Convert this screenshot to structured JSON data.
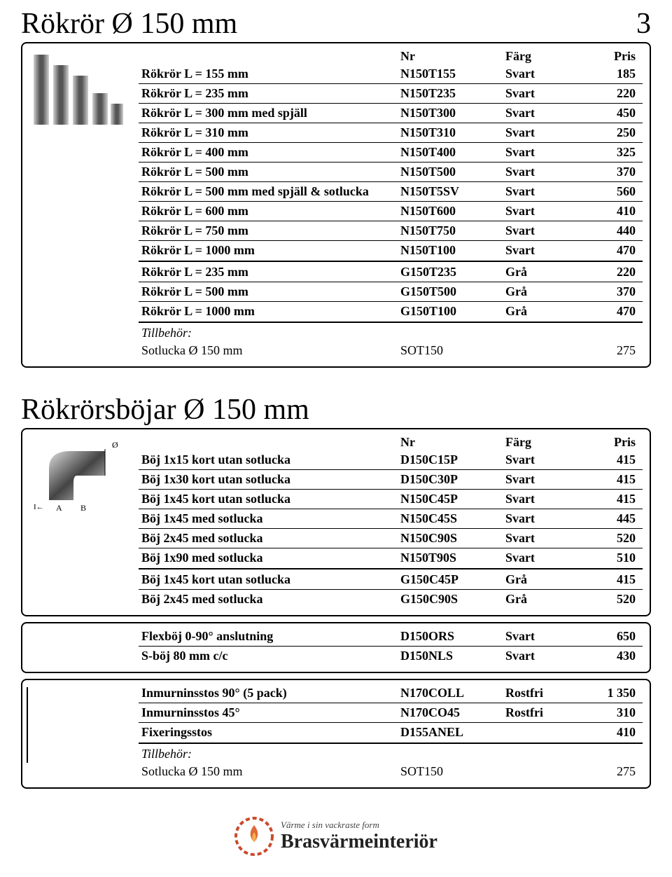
{
  "page_number": "3",
  "headers": {
    "nr": "Nr",
    "farg": "Färg",
    "pris": "Pris"
  },
  "colors": {
    "svart": "Svart",
    "gra": "Grå",
    "rostfri": "Rostfri"
  },
  "section1": {
    "title": "Rökrör Ø 150 mm",
    "rows_svart": [
      {
        "desc": "Rökrör L = 155 mm",
        "nr": "N150T155",
        "farg": "Svart",
        "pris": "185"
      },
      {
        "desc": "Rökrör L = 235 mm",
        "nr": "N150T235",
        "farg": "Svart",
        "pris": "220"
      },
      {
        "desc": "Rökrör L = 300 mm med spjäll",
        "nr": "N150T300",
        "farg": "Svart",
        "pris": "450"
      },
      {
        "desc": "Rökrör L = 310 mm",
        "nr": "N150T310",
        "farg": "Svart",
        "pris": "250"
      },
      {
        "desc": "Rökrör L = 400 mm",
        "nr": "N150T400",
        "farg": "Svart",
        "pris": "325"
      },
      {
        "desc": "Rökrör L = 500 mm",
        "nr": "N150T500",
        "farg": "Svart",
        "pris": "370"
      },
      {
        "desc": "Rökrör L = 500 mm med spjäll & sotlucka",
        "nr": "N150T5SV",
        "farg": "Svart",
        "pris": "560"
      },
      {
        "desc": "Rökrör L = 600 mm",
        "nr": "N150T600",
        "farg": "Svart",
        "pris": "410"
      },
      {
        "desc": "Rökrör L = 750 mm",
        "nr": "N150T750",
        "farg": "Svart",
        "pris": "440"
      },
      {
        "desc": "Rökrör L = 1000 mm",
        "nr": "N150T100",
        "farg": "Svart",
        "pris": "470"
      }
    ],
    "rows_gra": [
      {
        "desc": "Rökrör L = 235 mm",
        "nr": "G150T235",
        "farg": "Grå",
        "pris": "220"
      },
      {
        "desc": "Rökrör L = 500 mm",
        "nr": "G150T500",
        "farg": "Grå",
        "pris": "370"
      },
      {
        "desc": "Rökrör L = 1000 mm",
        "nr": "G150T100",
        "farg": "Grå",
        "pris": "470"
      }
    ],
    "tillbehor_label": "Tillbehör:",
    "tillbehor_row": {
      "desc": "Sotlucka Ø 150 mm",
      "nr": "SOT150",
      "farg": "",
      "pris": "275"
    }
  },
  "section2": {
    "title": "Rökrörsböjar Ø 150 mm",
    "rows_svart": [
      {
        "desc": "Böj 1x15 kort utan sotlucka",
        "nr": "D150C15P",
        "farg": "Svart",
        "pris": "415"
      },
      {
        "desc": "Böj 1x30 kort utan sotlucka",
        "nr": "D150C30P",
        "farg": "Svart",
        "pris": "415"
      },
      {
        "desc": "Böj 1x45 kort utan sotlucka",
        "nr": "N150C45P",
        "farg": "Svart",
        "pris": "415"
      },
      {
        "desc": "Böj 1x45 med sotlucka",
        "nr": "N150C45S",
        "farg": "Svart",
        "pris": "445"
      },
      {
        "desc": "Böj 2x45 med sotlucka",
        "nr": "N150C90S",
        "farg": "Svart",
        "pris": "520"
      },
      {
        "desc": "Böj 1x90 med sotlucka",
        "nr": "N150T90S",
        "farg": "Svart",
        "pris": "510"
      }
    ],
    "rows_gra": [
      {
        "desc": "Böj 1x45 kort utan sotlucka",
        "nr": "G150C45P",
        "farg": "Grå",
        "pris": "415"
      },
      {
        "desc": "Böj 2x45 med sotlucka",
        "nr": "G150C90S",
        "farg": "Grå",
        "pris": "520"
      }
    ],
    "rows_flex": [
      {
        "desc": "Flexböj 0-90° anslutning",
        "nr": "D150ORS",
        "farg": "Svart",
        "pris": "650"
      },
      {
        "desc": "S-böj 80 mm c/c",
        "nr": "D150NLS",
        "farg": "Svart",
        "pris": "430"
      }
    ],
    "rows_stos": [
      {
        "desc": "Inmurninsstos 90° (5 pack)",
        "nr": "N170COLL",
        "farg": "Rostfri",
        "pris": "1 350"
      },
      {
        "desc": "Inmurninsstos 45°",
        "nr": "N170CO45",
        "farg": "Rostfri",
        "pris": "310"
      },
      {
        "desc": "Fixeringsstos",
        "nr": "D155ANEL",
        "farg": "",
        "pris": "410"
      }
    ],
    "tillbehor_label": "Tillbehör:",
    "tillbehor_row": {
      "desc": "Sotlucka Ø 150 mm",
      "nr": "SOT150",
      "farg": "",
      "pris": "275"
    }
  },
  "footer": {
    "tagline": "Värme i sin vackraste form",
    "brand": "Brasvärmeinteriör"
  }
}
